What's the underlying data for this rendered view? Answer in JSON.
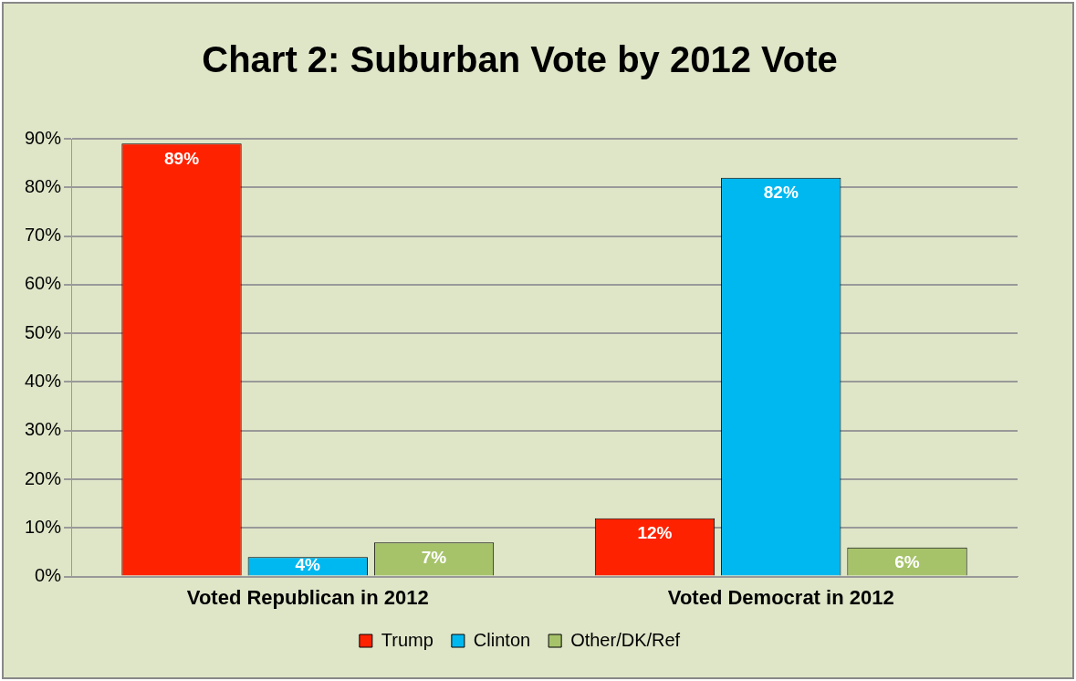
{
  "chart_data": {
    "type": "bar",
    "title": "Chart 2: Suburban Vote by 2012 Vote",
    "categories": [
      "Voted Republican in 2012",
      "Voted Democrat in 2012"
    ],
    "series": [
      {
        "name": "Trump",
        "color": "#ff2200",
        "values": [
          89,
          12
        ],
        "value_labels": [
          "89%",
          "12%"
        ]
      },
      {
        "name": "Clinton",
        "color": "#00b8f0",
        "values": [
          4,
          82
        ],
        "value_labels": [
          "4%",
          "82%"
        ]
      },
      {
        "name": "Other/DK/Ref",
        "color": "#a6c36a",
        "values": [
          7,
          6
        ],
        "value_labels": [
          "7%",
          "6%"
        ]
      }
    ],
    "ylim": [
      0,
      90
    ],
    "yticks": [
      {
        "value": 0,
        "label": "0%"
      },
      {
        "value": 10,
        "label": "10%"
      },
      {
        "value": 20,
        "label": "20%"
      },
      {
        "value": 30,
        "label": "30%"
      },
      {
        "value": 40,
        "label": "40%"
      },
      {
        "value": 50,
        "label": "50%"
      },
      {
        "value": 60,
        "label": "60%"
      },
      {
        "value": 70,
        "label": "70%"
      },
      {
        "value": 80,
        "label": "80%"
      },
      {
        "value": 90,
        "label": "90%"
      }
    ],
    "grid": "y",
    "legend": "bottom"
  }
}
